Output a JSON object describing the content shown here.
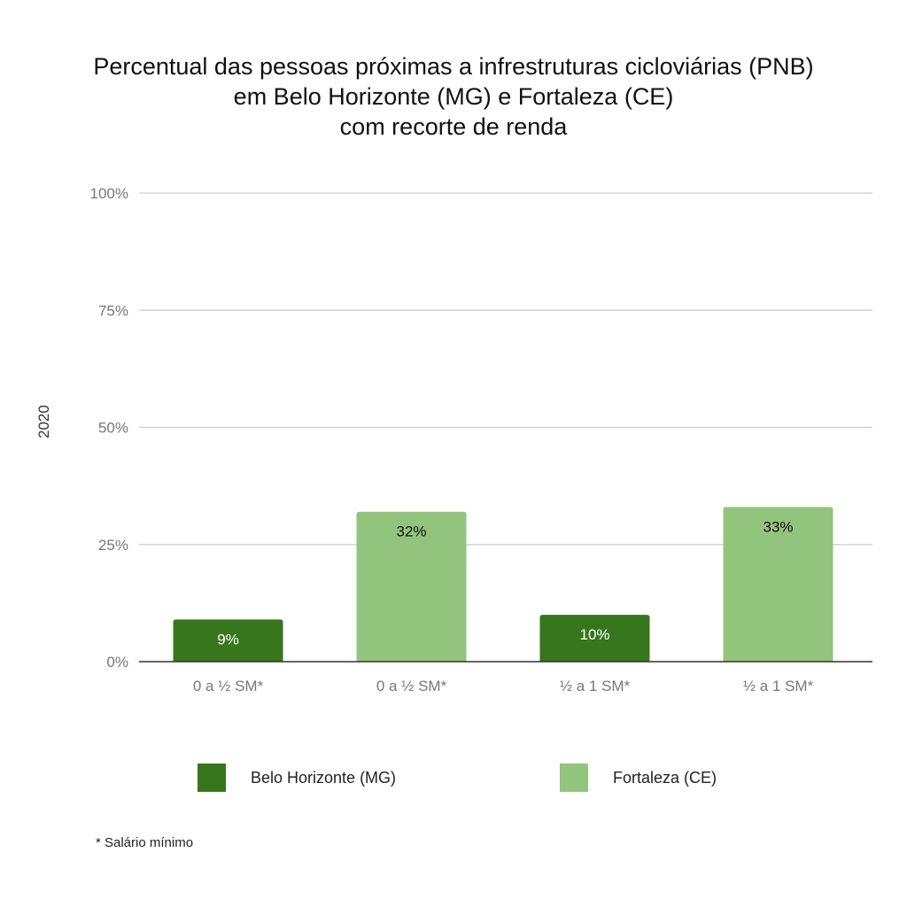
{
  "chart_data": {
    "type": "bar",
    "title": [
      "Percentual das pessoas próximas a infrestruturas cicloviárias (PNB)",
      "em Belo Horizonte (MG) e Fortaleza (CE)",
      "com recorte de renda"
    ],
    "ylabel": "2020",
    "xlabel": "",
    "ylim": [
      0,
      100
    ],
    "yticks": [
      "0%",
      "25%",
      "50%",
      "75%",
      "100%"
    ],
    "ytick_values": [
      0,
      25,
      50,
      75,
      100
    ],
    "grid": true,
    "bars": [
      {
        "category": "0 a ½ SM*",
        "series": "Belo Horizonte (MG)",
        "value": 9,
        "label": "9%"
      },
      {
        "category": "0 a ½ SM*",
        "series": "Fortaleza (CE)",
        "value": 32,
        "label": "32%"
      },
      {
        "category": "½ a 1 SM*",
        "series": "Belo Horizonte (MG)",
        "value": 10,
        "label": "10%"
      },
      {
        "category": "½ a 1 SM*",
        "series": "Fortaleza (CE)",
        "value": 33,
        "label": "33%"
      }
    ],
    "series": [
      {
        "name": "Belo Horizonte (MG)",
        "color": "#38761d",
        "label_color": "#ffffff"
      },
      {
        "name": "Fortaleza (CE)",
        "color": "#93c47d",
        "label_color": "#111111"
      }
    ],
    "legend_position": "bottom",
    "footnote": "* Salário mínimo"
  }
}
